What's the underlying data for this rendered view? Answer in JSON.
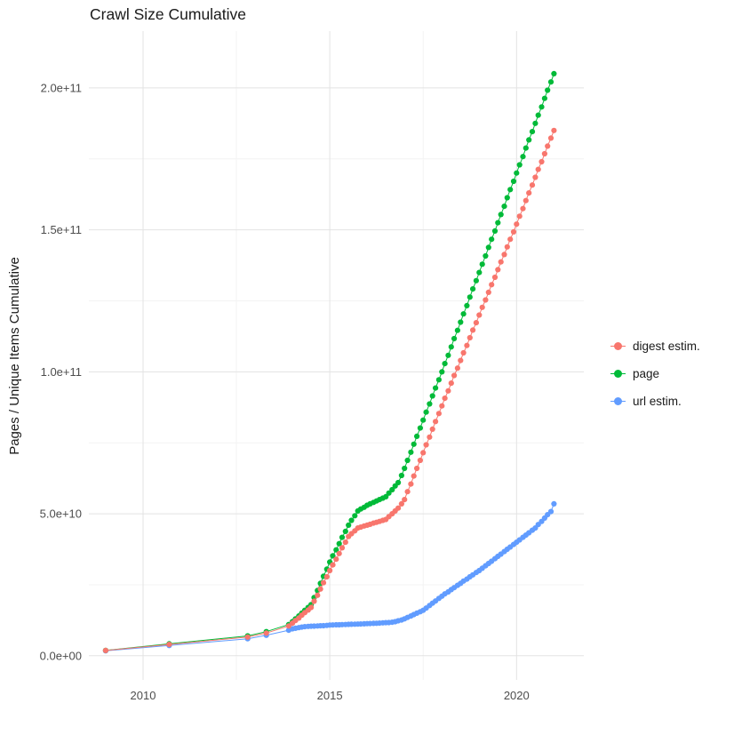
{
  "chart_data": {
    "type": "line",
    "title": "Crawl Size Cumulative",
    "xlabel": "",
    "ylabel": "Pages / Unique Items Cumulative",
    "legend_position": "right",
    "grid": true,
    "y_values_unit": "1e9 (billions of pages / items)",
    "x_unit": "decimal year",
    "x_domain": [
      2008.55,
      2021.8
    ],
    "y_domain": [
      -8.5,
      220
    ],
    "x_ticks": {
      "values": [
        2010,
        2015,
        2020
      ],
      "labels": [
        "2010",
        "2015",
        "2020"
      ]
    },
    "y_ticks": {
      "values": [
        0,
        50,
        100,
        150,
        200
      ],
      "labels": [
        "0.0e+00",
        "5.0e+10",
        "1.0e+11",
        "1.5e+11",
        "2.0e+11"
      ]
    },
    "x_minor": [
      2012.5,
      2017.5
    ],
    "y_minor": [
      25,
      75,
      125,
      175
    ],
    "colors": {
      "grid_major": "#e3e3e3",
      "grid_minor": "#f3f3f3",
      "text": "#4d4d4d"
    },
    "x": [
      2009,
      2010.7,
      2012.8,
      2013.3,
      2013.9,
      2014,
      2014.08,
      2014.17,
      2014.25,
      2014.33,
      2014.42,
      2014.5,
      2014.58,
      2014.67,
      2014.75,
      2014.83,
      2014.92,
      2015,
      2015.08,
      2015.17,
      2015.25,
      2015.33,
      2015.42,
      2015.5,
      2015.58,
      2015.67,
      2015.75,
      2015.83,
      2015.92,
      2016,
      2016.08,
      2016.17,
      2016.25,
      2016.33,
      2016.42,
      2016.5,
      2016.58,
      2016.67,
      2016.75,
      2016.83,
      2016.92,
      2017,
      2017.08,
      2017.17,
      2017.25,
      2017.33,
      2017.42,
      2017.5,
      2017.58,
      2017.67,
      2017.75,
      2017.83,
      2017.92,
      2018,
      2018.08,
      2018.17,
      2018.25,
      2018.33,
      2018.42,
      2018.5,
      2018.58,
      2018.67,
      2018.75,
      2018.83,
      2018.92,
      2019,
      2019.08,
      2019.17,
      2019.25,
      2019.33,
      2019.42,
      2019.5,
      2019.58,
      2019.67,
      2019.75,
      2019.83,
      2019.92,
      2020,
      2020.08,
      2020.17,
      2020.25,
      2020.33,
      2020.42,
      2020.5,
      2020.58,
      2020.67,
      2020.75,
      2020.83,
      2020.92,
      2021
    ],
    "series": [
      {
        "name": "digest estim.",
        "color": "#F8766D",
        "y": [
          1.85,
          4,
          6.6,
          8,
          10.5,
          11.5,
          12.4,
          13.3,
          14.3,
          15.2,
          16.1,
          17,
          19.2,
          21.3,
          23.5,
          25.7,
          27.8,
          30,
          32,
          34,
          36,
          38,
          40,
          42,
          43,
          44,
          45,
          45.3,
          45.7,
          46,
          46.3,
          46.7,
          47,
          47.3,
          47.7,
          48,
          49,
          50,
          51,
          52,
          53.5,
          55,
          57.8,
          60.5,
          63.3,
          66,
          68.8,
          71.5,
          74.3,
          77,
          79.8,
          82.5,
          85.3,
          88,
          90.7,
          93.3,
          96,
          98.7,
          101.3,
          104,
          106.7,
          109.3,
          112,
          114.7,
          117.3,
          120,
          122.7,
          125.3,
          128,
          130.7,
          133.3,
          136,
          138.7,
          141.3,
          144,
          146.7,
          149.3,
          152,
          154.8,
          157.5,
          160.3,
          163,
          165.8,
          168.5,
          171.3,
          174,
          176.8,
          179.5,
          182.3,
          185
        ]
      },
      {
        "name": "page",
        "color": "#00BA38",
        "y": [
          1.9,
          4.2,
          7,
          8.5,
          11,
          12,
          13,
          14,
          15,
          16,
          17,
          18,
          20.5,
          23,
          25.5,
          28,
          30.5,
          33,
          35.2,
          37.3,
          39.5,
          41.7,
          43.8,
          46,
          47.7,
          49.3,
          51,
          51.7,
          52.3,
          53,
          53.5,
          54,
          54.5,
          55,
          55.5,
          56,
          57.3,
          58.5,
          59.8,
          61,
          63.5,
          66,
          68.8,
          71.7,
          74.5,
          77.3,
          80.2,
          83,
          85.8,
          88.7,
          91.5,
          94.3,
          97.2,
          100,
          102.9,
          105.8,
          108.8,
          111.7,
          114.6,
          117.5,
          120.4,
          123.3,
          126.3,
          129.2,
          132.1,
          135,
          137.9,
          140.8,
          143.8,
          146.7,
          149.6,
          152.5,
          155.4,
          158.3,
          161.3,
          164.2,
          167.1,
          170,
          172.9,
          175.8,
          178.8,
          181.7,
          184.6,
          187.5,
          190.4,
          193.3,
          196.3,
          199.2,
          202.1,
          205
        ]
      },
      {
        "name": "url estim.",
        "color": "#619CFF",
        "y": [
          1.75,
          3.6,
          6,
          7.2,
          9,
          9.5,
          9.7,
          9.9,
          10.1,
          10.25,
          10.35,
          10.4,
          10.45,
          10.5,
          10.55,
          10.6,
          10.7,
          10.8,
          10.85,
          10.9,
          10.92,
          10.96,
          11,
          11.05,
          11.1,
          11.13,
          11.17,
          11.2,
          11.25,
          11.3,
          11.35,
          11.4,
          11.45,
          11.5,
          11.6,
          11.65,
          11.7,
          11.8,
          12,
          12.3,
          12.6,
          13,
          13.5,
          14,
          14.5,
          15,
          15.5,
          16,
          16.8,
          17.7,
          18.5,
          19.3,
          20.2,
          21,
          21.8,
          22.5,
          23.3,
          24,
          24.8,
          25.5,
          26.3,
          27,
          27.8,
          28.5,
          29.3,
          30,
          30.8,
          31.7,
          32.5,
          33.3,
          34.2,
          35,
          35.8,
          36.7,
          37.5,
          38.3,
          39.2,
          40,
          40.8,
          41.7,
          42.5,
          43.3,
          44.2,
          45,
          46.2,
          47.3,
          48.5,
          49.7,
          50.8,
          53.5
        ]
      }
    ]
  }
}
